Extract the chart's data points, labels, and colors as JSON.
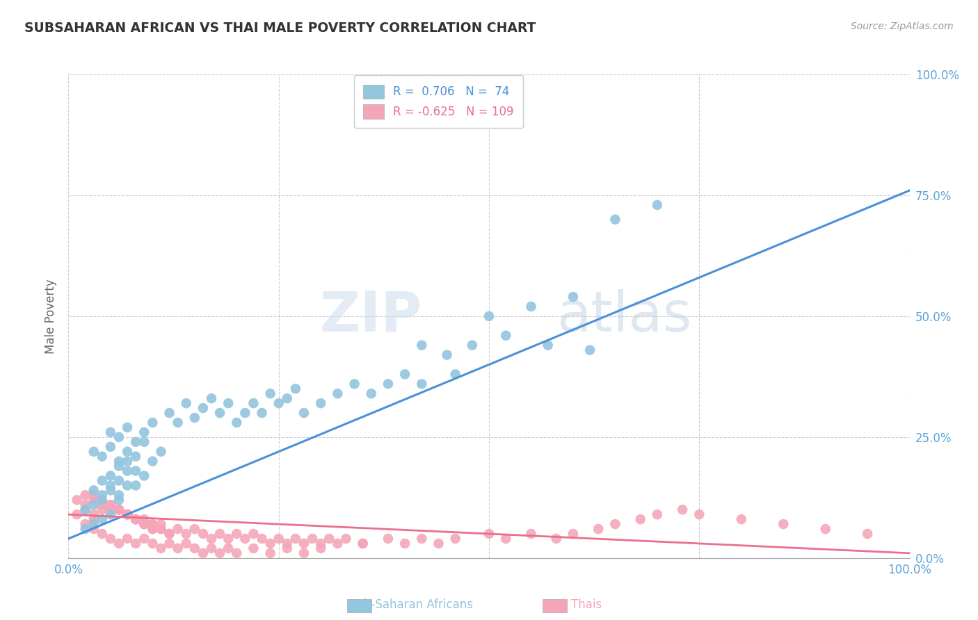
{
  "title": "SUBSAHARAN AFRICAN VS THAI MALE POVERTY CORRELATION CHART",
  "source": "Source: ZipAtlas.com",
  "ylabel": "Male Poverty",
  "xlim": [
    0,
    1
  ],
  "ylim": [
    0,
    1
  ],
  "xticks": [
    0.0,
    0.25,
    0.5,
    0.75,
    1.0
  ],
  "yticks": [
    0.0,
    0.25,
    0.5,
    0.75,
    1.0
  ],
  "xticklabels": [
    "0.0%",
    "",
    "",
    "",
    "100.0%"
  ],
  "yticklabels_right": [
    "0.0%",
    "25.0%",
    "50.0%",
    "75.0%",
    "100.0%"
  ],
  "blue_color": "#92c5de",
  "pink_color": "#f4a6b8",
  "blue_line_color": "#4a90d9",
  "pink_line_color": "#e8708a",
  "blue_R": 0.706,
  "blue_N": 74,
  "pink_R": -0.625,
  "pink_N": 109,
  "blue_line_x": [
    0.0,
    1.0
  ],
  "blue_line_y": [
    0.04,
    0.76
  ],
  "pink_line_x": [
    0.0,
    1.0
  ],
  "pink_line_y": [
    0.09,
    0.01
  ],
  "watermark_zip": "ZIP",
  "watermark_atlas": "atlas",
  "background_color": "#ffffff",
  "grid_color": "#d0d0d0",
  "tick_color": "#5ba3d9",
  "blue_scatter_x": [
    0.02,
    0.03,
    0.04,
    0.02,
    0.03,
    0.04,
    0.05,
    0.03,
    0.04,
    0.05,
    0.06,
    0.04,
    0.05,
    0.06,
    0.07,
    0.05,
    0.06,
    0.07,
    0.08,
    0.06,
    0.07,
    0.08,
    0.09,
    0.03,
    0.04,
    0.05,
    0.06,
    0.07,
    0.08,
    0.09,
    0.1,
    0.11,
    0.05,
    0.06,
    0.07,
    0.08,
    0.09,
    0.1,
    0.12,
    0.13,
    0.14,
    0.15,
    0.16,
    0.17,
    0.18,
    0.19,
    0.2,
    0.21,
    0.22,
    0.23,
    0.24,
    0.25,
    0.26,
    0.27,
    0.28,
    0.3,
    0.32,
    0.34,
    0.36,
    0.38,
    0.4,
    0.42,
    0.46,
    0.5,
    0.55,
    0.6,
    0.65,
    0.7,
    0.42,
    0.45,
    0.48,
    0.52,
    0.57,
    0.62
  ],
  "blue_scatter_y": [
    0.06,
    0.07,
    0.08,
    0.1,
    0.11,
    0.12,
    0.09,
    0.14,
    0.13,
    0.15,
    0.12,
    0.16,
    0.14,
    0.13,
    0.15,
    0.17,
    0.16,
    0.18,
    0.15,
    0.19,
    0.2,
    0.18,
    0.17,
    0.22,
    0.21,
    0.23,
    0.2,
    0.22,
    0.21,
    0.24,
    0.2,
    0.22,
    0.26,
    0.25,
    0.27,
    0.24,
    0.26,
    0.28,
    0.3,
    0.28,
    0.32,
    0.29,
    0.31,
    0.33,
    0.3,
    0.32,
    0.28,
    0.3,
    0.32,
    0.3,
    0.34,
    0.32,
    0.33,
    0.35,
    0.3,
    0.32,
    0.34,
    0.36,
    0.34,
    0.36,
    0.38,
    0.36,
    0.38,
    0.5,
    0.52,
    0.54,
    0.7,
    0.73,
    0.44,
    0.42,
    0.44,
    0.46,
    0.44,
    0.43
  ],
  "pink_scatter_x": [
    0.01,
    0.02,
    0.03,
    0.01,
    0.02,
    0.03,
    0.04,
    0.02,
    0.03,
    0.04,
    0.05,
    0.03,
    0.04,
    0.05,
    0.06,
    0.04,
    0.05,
    0.06,
    0.07,
    0.05,
    0.06,
    0.07,
    0.08,
    0.06,
    0.07,
    0.08,
    0.09,
    0.07,
    0.08,
    0.09,
    0.1,
    0.08,
    0.09,
    0.1,
    0.11,
    0.09,
    0.1,
    0.11,
    0.12,
    0.1,
    0.11,
    0.12,
    0.13,
    0.14,
    0.15,
    0.16,
    0.17,
    0.18,
    0.19,
    0.2,
    0.21,
    0.22,
    0.23,
    0.24,
    0.25,
    0.26,
    0.27,
    0.28,
    0.29,
    0.3,
    0.31,
    0.32,
    0.33,
    0.35,
    0.38,
    0.4,
    0.42,
    0.44,
    0.46,
    0.5,
    0.52,
    0.55,
    0.58,
    0.6,
    0.63,
    0.65,
    0.68,
    0.7,
    0.73,
    0.75,
    0.8,
    0.85,
    0.9,
    0.95,
    0.02,
    0.03,
    0.04,
    0.05,
    0.06,
    0.07,
    0.08,
    0.09,
    0.1,
    0.11,
    0.12,
    0.13,
    0.14,
    0.15,
    0.16,
    0.17,
    0.18,
    0.19,
    0.2,
    0.22,
    0.24,
    0.26,
    0.28,
    0.3,
    0.35
  ],
  "pink_scatter_y": [
    0.09,
    0.1,
    0.08,
    0.12,
    0.11,
    0.09,
    0.1,
    0.13,
    0.12,
    0.11,
    0.1,
    0.13,
    0.12,
    0.11,
    0.1,
    0.12,
    0.11,
    0.1,
    0.09,
    0.11,
    0.1,
    0.09,
    0.08,
    0.1,
    0.09,
    0.08,
    0.07,
    0.09,
    0.08,
    0.07,
    0.06,
    0.08,
    0.07,
    0.06,
    0.07,
    0.08,
    0.07,
    0.06,
    0.05,
    0.07,
    0.06,
    0.05,
    0.06,
    0.05,
    0.06,
    0.05,
    0.04,
    0.05,
    0.04,
    0.05,
    0.04,
    0.05,
    0.04,
    0.03,
    0.04,
    0.03,
    0.04,
    0.03,
    0.04,
    0.03,
    0.04,
    0.03,
    0.04,
    0.03,
    0.04,
    0.03,
    0.04,
    0.03,
    0.04,
    0.05,
    0.04,
    0.05,
    0.04,
    0.05,
    0.06,
    0.07,
    0.08,
    0.09,
    0.1,
    0.09,
    0.08,
    0.07,
    0.06,
    0.05,
    0.07,
    0.06,
    0.05,
    0.04,
    0.03,
    0.04,
    0.03,
    0.04,
    0.03,
    0.02,
    0.03,
    0.02,
    0.03,
    0.02,
    0.01,
    0.02,
    0.01,
    0.02,
    0.01,
    0.02,
    0.01,
    0.02,
    0.01,
    0.02,
    0.03
  ]
}
